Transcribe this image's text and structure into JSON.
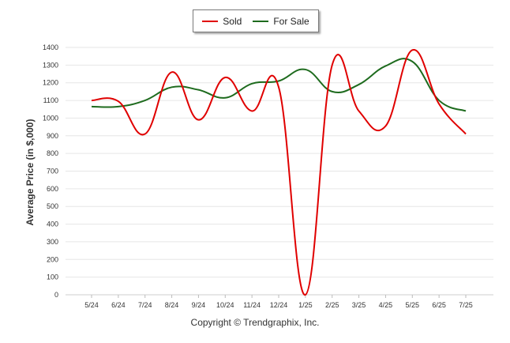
{
  "chart_data": {
    "type": "line",
    "categories": [
      "5/24",
      "6/24",
      "7/24",
      "8/24",
      "9/24",
      "10/24",
      "11/24",
      "12/24",
      "1/25",
      "2/25",
      "3/25",
      "4/25",
      "5/25",
      "6/25",
      "7/25"
    ],
    "series": [
      {
        "name": "Sold",
        "color": "#e00000",
        "values": [
          1100,
          1095,
          910,
          1260,
          990,
          1230,
          1040,
          1175,
          0,
          1300,
          1040,
          955,
          1385,
          1080,
          910
        ]
      },
      {
        "name": "For Sale",
        "color": "#1e6b1e",
        "values": [
          1065,
          1065,
          1100,
          1175,
          1160,
          1115,
          1195,
          1210,
          1275,
          1150,
          1190,
          1295,
          1320,
          1100,
          1040
        ]
      }
    ],
    "ylabel": "Average Price (in $,000)",
    "ylim": [
      0,
      1400
    ],
    "yticks": [
      0,
      100,
      200,
      300,
      400,
      500,
      600,
      700,
      800,
      900,
      1000,
      1100,
      1200,
      1300,
      1400
    ],
    "grid": true,
    "legend": "top-center"
  },
  "footer": {
    "copyright": "Copyright © Trendgraphix, Inc."
  }
}
